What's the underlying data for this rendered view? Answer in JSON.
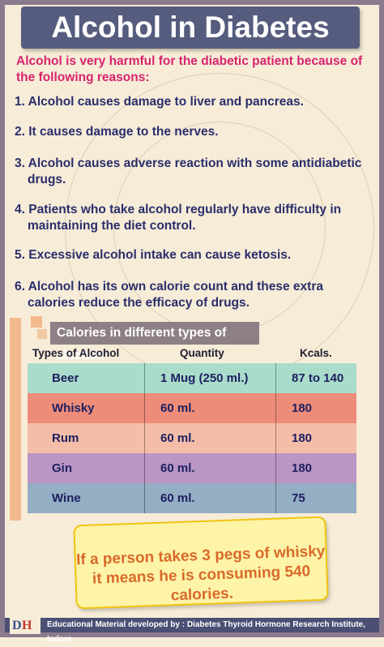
{
  "title": "Alcohol in Diabetes",
  "intro": "Alcohol is very harmful for the diabetic patient because of the following reasons:",
  "reasons": [
    "1. Alcohol causes damage to liver and pancreas.",
    "2. It causes damage to the nerves.",
    "3. Alcohol causes adverse reaction with some antidiabetic drugs.",
    "4. Patients who take alcohol regularly have difficulty in maintaining the diet control.",
    "5. Excessive alcohol intake can cause ketosis.",
    "6. Alcohol has its own calorie count and these extra calories reduce the efficacy of drugs."
  ],
  "calories": {
    "header": "Calories in different types of alcohol:",
    "columns": [
      "Types of Alcohol",
      "Quantity",
      "Kcals."
    ],
    "rows": [
      {
        "type": "Beer",
        "quantity": "1 Mug (250 ml.)",
        "kcals": "87 to 140",
        "color": "#a9dccb"
      },
      {
        "type": "Whisky",
        "quantity": "60 ml.",
        "kcals": "180",
        "color": "#ee8c7a"
      },
      {
        "type": "Rum",
        "quantity": "60 ml.",
        "kcals": "180",
        "color": "#f4bda8"
      },
      {
        "type": "Gin",
        "quantity": "60 ml.",
        "kcals": "180",
        "color": "#b996c4"
      },
      {
        "type": "Wine",
        "quantity": "60 ml.",
        "kcals": "75",
        "color": "#94aec4"
      }
    ]
  },
  "note": {
    "line1": "If a person takes 3 pegs of whisky",
    "line2": "it means he is consuming 540 calories."
  },
  "footer": "Educational Material developed by : Diabetes Thyroid Hormone Research Institute, Indore"
}
